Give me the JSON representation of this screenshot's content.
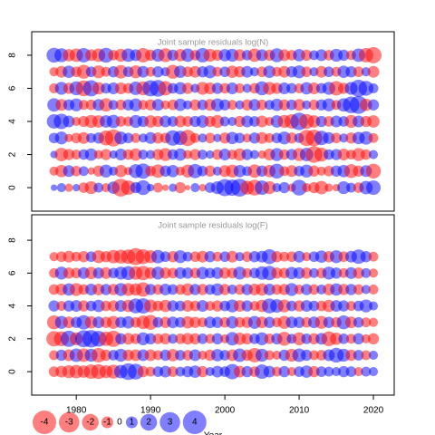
{
  "chart_data": [
    {
      "type": "bubble",
      "title": "Joint sample residuals log(N)",
      "x": [
        1977,
        1978,
        1979,
        1980,
        1981,
        1982,
        1983,
        1984,
        1985,
        1986,
        1987,
        1988,
        1989,
        1990,
        1991,
        1992,
        1993,
        1994,
        1995,
        1996,
        1997,
        1998,
        1999,
        2000,
        2001,
        2002,
        2003,
        2004,
        2005,
        2006,
        2007,
        2008,
        2009,
        2010,
        2011,
        2012,
        2013,
        2014,
        2015,
        2016,
        2017,
        2018,
        2019,
        2020
      ],
      "ages": [
        0,
        1,
        2,
        3,
        4,
        5,
        6,
        7,
        8
      ],
      "values": [
        [
          0.3,
          0.6,
          -0.5,
          0.4,
          -0.8,
          -1.2,
          0.7,
          -0.6,
          1.1,
          -2.3,
          -1.5,
          0.9,
          1.6,
          0.4,
          -0.7,
          -0.3,
          0.5,
          -0.9,
          -0.2,
          0.6,
          -0.4,
          0.8,
          1.2,
          2.1,
          1.9,
          2.3,
          -1.4,
          -1.8,
          1.5,
          -1.2,
          0.6,
          0.9,
          -0.5,
          1.8,
          -0.6,
          -0.9,
          -1.3,
          -0.5,
          -0.4,
          1.2,
          0.7,
          -0.8,
          1.3,
          1.5
        ],
        [
          -0.6,
          -1.1,
          1.0,
          -0.8,
          0.7,
          -0.4,
          -0.9,
          1.2,
          0.6,
          -1.1,
          -0.5,
          1.4,
          1.7,
          -0.8,
          -1.3,
          0.9,
          1.1,
          -0.6,
          -1.2,
          1.5,
          0.8,
          -0.9,
          0.6,
          -1.0,
          -1.2,
          1.1,
          0.7,
          -1.3,
          0.9,
          -1.1,
          1.6,
          -0.7,
          -1.0,
          0.8,
          1.2,
          -0.9,
          -0.6,
          -0.8,
          0.9,
          1.1,
          -1.4,
          -0.9,
          1.0,
          -1.6
        ],
        [
          0.4,
          -1.3,
          -0.9,
          -0.7,
          0.8,
          1.1,
          -0.6,
          -0.9,
          0.5,
          1.0,
          -0.8,
          -1.1,
          0.7,
          0.6,
          -0.9,
          -1.2,
          0.8,
          1.1,
          -0.6,
          -0.9,
          0.7,
          0.5,
          -0.8,
          1.0,
          -0.7,
          -1.1,
          0.9,
          0.6,
          -0.5,
          -1.0,
          1.2,
          -0.8,
          0.9,
          -1.2,
          1.3,
          -2.0,
          -1.4,
          0.8,
          0.9,
          -1.0,
          -0.7,
          -1.2,
          -0.8,
          0.6
        ],
        [
          0.8,
          1.2,
          -0.5,
          -0.8,
          -1.0,
          0.7,
          0.9,
          -1.6,
          -2.1,
          1.2,
          0.8,
          -0.7,
          0.6,
          1.0,
          -0.9,
          -0.8,
          1.7,
          1.5,
          -1.9,
          -0.7,
          0.6,
          -0.8,
          0.5,
          -0.9,
          1.1,
          0.8,
          -0.6,
          0.9,
          -1.0,
          -0.7,
          0.8,
          1.2,
          -0.9,
          0.7,
          -1.9,
          -2.0,
          1.5,
          1.0,
          -0.8,
          0.6,
          -0.9,
          1.1,
          1.3,
          -0.7
        ],
        [
          1.5,
          1.7,
          1.0,
          -0.6,
          -0.9,
          -1.2,
          -1.1,
          1.1,
          1.3,
          -0.8,
          -0.7,
          1.2,
          0.9,
          -1.1,
          -0.9,
          1.0,
          0.8,
          -1.0,
          -0.8,
          0.9,
          1.1,
          -0.9,
          -1.2,
          0.7,
          0.6,
          -0.9,
          1.0,
          0.8,
          -1.0,
          -0.6,
          1.1,
          -1.2,
          -1.5,
          2.2,
          -1.6,
          -1.1,
          0.9,
          -0.8,
          1.0,
          0.8,
          -1.2,
          1.0,
          -0.9,
          -1.1
        ],
        [
          1.3,
          -1.0,
          0.9,
          1.2,
          -0.7,
          -0.8,
          1.0,
          -1.3,
          0.7,
          -0.8,
          0.9,
          1.2,
          -0.7,
          -0.9,
          1.0,
          -0.6,
          -0.8,
          1.1,
          0.6,
          -0.9,
          0.8,
          -1.0,
          1.2,
          0.9,
          -0.7,
          0.6,
          -0.9,
          1.0,
          -0.8,
          0.7,
          1.1,
          -0.9,
          0.8,
          -1.0,
          0.6,
          -0.8,
          0.9,
          1.2,
          -0.7,
          1.3,
          2.0,
          2.3,
          -1.1,
          0.9
        ],
        [
          -0.7,
          1.2,
          -0.9,
          1.4,
          -1.8,
          1.9,
          -1.1,
          0.8,
          1.0,
          -1.0,
          -0.8,
          1.3,
          -1.4,
          1.9,
          2.0,
          -1.5,
          0.8,
          1.1,
          -0.9,
          0.6,
          -1.2,
          -1.0,
          0.9,
          -0.8,
          1.0,
          -0.7,
          0.6,
          -0.8,
          1.4,
          -1.2,
          -0.9,
          1.0,
          0.8,
          -0.7,
          1.1,
          -1.0,
          0.8,
          1.2,
          -1.5,
          -0.9,
          1.2,
          2.1,
          1.6,
          0.7
        ],
        [
          -0.6,
          -1.0,
          1.1,
          -0.8,
          -1.4,
          0.8,
          -1.2,
          -0.7,
          0.9,
          -1.3,
          0.8,
          -1.2,
          1.0,
          -0.7,
          0.9,
          0.6,
          -1.4,
          1.1,
          -0.8,
          -1.0,
          0.9,
          1.2,
          -0.7,
          0.8,
          -1.1,
          -0.9,
          1.0,
          0.6,
          -0.8,
          1.1,
          -0.7,
          -1.0,
          0.9,
          1.2,
          -0.8,
          0.6,
          -1.0,
          0.8,
          -0.7,
          1.1,
          0.9,
          -0.8,
          0.6,
          -1.0
        ],
        [
          1.6,
          1.4,
          -1.1,
          -1.3,
          1.5,
          -1.0,
          -1.3,
          1.6,
          -0.8,
          -1.2,
          1.3,
          1.0,
          -1.5,
          -0.9,
          1.2,
          -1.4,
          0.9,
          -1.1,
          1.3,
          -0.8,
          1.5,
          -1.2,
          -0.9,
          1.1,
          1.2,
          -1.0,
          0.8,
          -1.3,
          1.0,
          -0.9,
          1.4,
          -1.0,
          -0.8,
          1.1,
          -0.9,
          0.7,
          1.0,
          -0.8,
          1.2,
          0.9,
          -0.7,
          1.3,
          -1.5,
          -1.9
        ]
      ],
      "ylim": [
        -1.42,
        9.42
      ],
      "yticks": [
        0,
        2,
        4,
        6,
        8
      ],
      "xlim": [
        1974.0,
        2022.8
      ],
      "colors": {
        "negative": "#ff0000",
        "positive": "#0000ff"
      }
    },
    {
      "type": "bubble",
      "title": "Joint sample residuals log(F)",
      "x": [
        1977,
        1978,
        1979,
        1980,
        1981,
        1982,
        1983,
        1984,
        1985,
        1986,
        1987,
        1988,
        1989,
        1990,
        1991,
        1992,
        1993,
        1994,
        1995,
        1996,
        1997,
        1998,
        1999,
        2000,
        2001,
        2002,
        2003,
        2004,
        2005,
        2006,
        2007,
        2008,
        2009,
        2010,
        2011,
        2012,
        2013,
        2014,
        2015,
        2016,
        2017,
        2018,
        2019,
        2020
      ],
      "ages": [
        0,
        1,
        2,
        3,
        4,
        5,
        6,
        7
      ],
      "values": [
        [
          -0.8,
          -1.0,
          -1.2,
          -1.3,
          -1.1,
          -1.5,
          -1.6,
          -1.2,
          -1.4,
          1.3,
          2.0,
          1.8,
          -0.9,
          -0.7,
          0.8,
          1.0,
          -0.8,
          0.7,
          0.9,
          1.1,
          -0.9,
          0.6,
          1.0,
          0.8,
          1.7,
          -1.0,
          0.9,
          -0.8,
          1.5,
          1.0,
          -0.7,
          0.9,
          -0.6,
          0.8,
          1.1,
          -0.9,
          0.8,
          0.7,
          0.6,
          0.9,
          0.8,
          -0.6,
          0.7,
          0.6
        ],
        [
          -0.7,
          0.9,
          -1.0,
          1.3,
          -1.3,
          1.2,
          -1.5,
          -0.9,
          0.8,
          1.2,
          -0.9,
          -1.0,
          1.0,
          -1.0,
          -0.7,
          0.9,
          -1.1,
          0.8,
          -0.8,
          1.0,
          -0.6,
          -0.9,
          1.1,
          0.8,
          -1.0,
          1.3,
          -0.9,
          -1.5,
          1.2,
          -0.7,
          -0.6,
          0.9,
          -1.2,
          1.3,
          0.9,
          -0.7,
          -0.8,
          1.0,
          1.6,
          1.2,
          -0.9,
          0.8,
          -0.7,
          0.6
        ],
        [
          -1.7,
          -1.6,
          1.9,
          -1.2,
          2.1,
          2.2,
          1.8,
          -1.5,
          -1.9,
          0.9,
          -1.0,
          -0.8,
          1.2,
          0.9,
          -0.8,
          -0.9,
          0.7,
          -0.8,
          -1.0,
          -0.9,
          0.8,
          -0.7,
          0.9,
          -0.6,
          1.3,
          -1.1,
          -0.9,
          0.8,
          1.2,
          -0.8,
          0.9,
          -1.4,
          0.7,
          -1.2,
          0.8,
          -0.9,
          1.0,
          -1.6,
          -1.1,
          0.8,
          -0.7,
          0.9,
          -0.6,
          -0.9
        ],
        [
          -1.4,
          1.2,
          -1.0,
          0.9,
          1.5,
          -1.1,
          1.0,
          -0.9,
          -1.2,
          0.9,
          1.1,
          -0.8,
          -1.3,
          -1.6,
          0.8,
          -0.9,
          1.0,
          0.8,
          -1.1,
          -0.9,
          -0.7,
          1.0,
          0.9,
          -0.8,
          1.1,
          -0.8,
          -0.9,
          1.2,
          -1.0,
          0.9,
          -0.7,
          -1.2,
          1.0,
          0.9,
          -0.8,
          1.0,
          -1.2,
          0.9,
          -0.8,
          1.4,
          -1.0,
          0.8,
          -0.7,
          -0.6
        ],
        [
          0.9,
          -0.7,
          0.9,
          1.0,
          -0.9,
          0.8,
          1.1,
          -0.8,
          -0.9,
          1.0,
          -1.1,
          1.6,
          1.7,
          -1.2,
          -0.8,
          -1.1,
          0.9,
          0.8,
          -1.0,
          -0.8,
          1.0,
          -0.7,
          -0.9,
          0.8,
          1.2,
          -1.0,
          0.9,
          -0.7,
          -1.1,
          1.6,
          1.3,
          -1.2,
          0.8,
          -0.9,
          1.0,
          0.8,
          -0.8,
          -1.1,
          1.0,
          0.9,
          -0.7,
          0.8,
          1.2,
          0.6
        ],
        [
          -0.8,
          -1.0,
          1.1,
          -1.2,
          -0.8,
          1.0,
          -1.0,
          0.9,
          -0.9,
          1.2,
          -1.2,
          -1.1,
          -1.5,
          0.9,
          -0.8,
          1.0,
          0.8,
          -0.8,
          -1.1,
          0.9,
          -0.9,
          0.8,
          1.1,
          -0.9,
          0.7,
          -0.8,
          0.9,
          -1.0,
          -1.1,
          1.0,
          -0.8,
          -0.9,
          1.2,
          -0.7,
          0.9,
          -0.8,
          0.7,
          -1.0,
          1.1,
          -0.9,
          0.9,
          -0.8,
          0.6,
          -0.7
        ],
        [
          -0.7,
          1.2,
          -0.9,
          -0.8,
          1.0,
          -1.1,
          0.9,
          -1.0,
          0.8,
          1.2,
          1.4,
          -1.3,
          -1.5,
          -1.0,
          1.2,
          -0.9,
          -0.8,
          1.0,
          0.9,
          -0.8,
          1.1,
          0.8,
          1.0,
          -0.9,
          -0.8,
          1.2,
          -0.7,
          0.8,
          1.3,
          1.5,
          -0.9,
          -0.8,
          1.1,
          1.0,
          -0.9,
          0.7,
          -0.8,
          1.2,
          0.9,
          -0.7,
          1.0,
          -0.9,
          0.7,
          -0.6
        ],
        [
          -0.6,
          -0.8,
          -1.0,
          -0.7,
          -0.9,
          0.8,
          -1.2,
          -0.9,
          -1.3,
          -1.4,
          -1.5,
          -2.1,
          -1.6,
          -1.2,
          1.3,
          0.8,
          -0.9,
          1.2,
          0.7,
          -0.8,
          -1.0,
          0.9,
          -0.7,
          0.8,
          -1.0,
          0.6,
          -0.8,
          0.9,
          1.0,
          1.6,
          -0.9,
          -0.7,
          -0.8,
          1.0,
          -0.6,
          0.8,
          1.1,
          -0.9,
          1.2,
          -0.8,
          1.0,
          1.5,
          0.9,
          -0.7
        ]
      ],
      "ylim": [
        -1.43,
        9.55
      ],
      "yticks": [
        0,
        2,
        4,
        6,
        8
      ],
      "xlim": [
        1974.0,
        2022.8
      ],
      "xticks": [
        1980,
        1990,
        2000,
        2010,
        2020
      ],
      "xlabel": "Year",
      "colors": {
        "negative": "#ff0000",
        "positive": "#0000ff"
      },
      "legend": {
        "values": [
          -4,
          -3,
          -2,
          -1,
          0,
          1,
          2,
          3,
          4
        ]
      }
    }
  ]
}
